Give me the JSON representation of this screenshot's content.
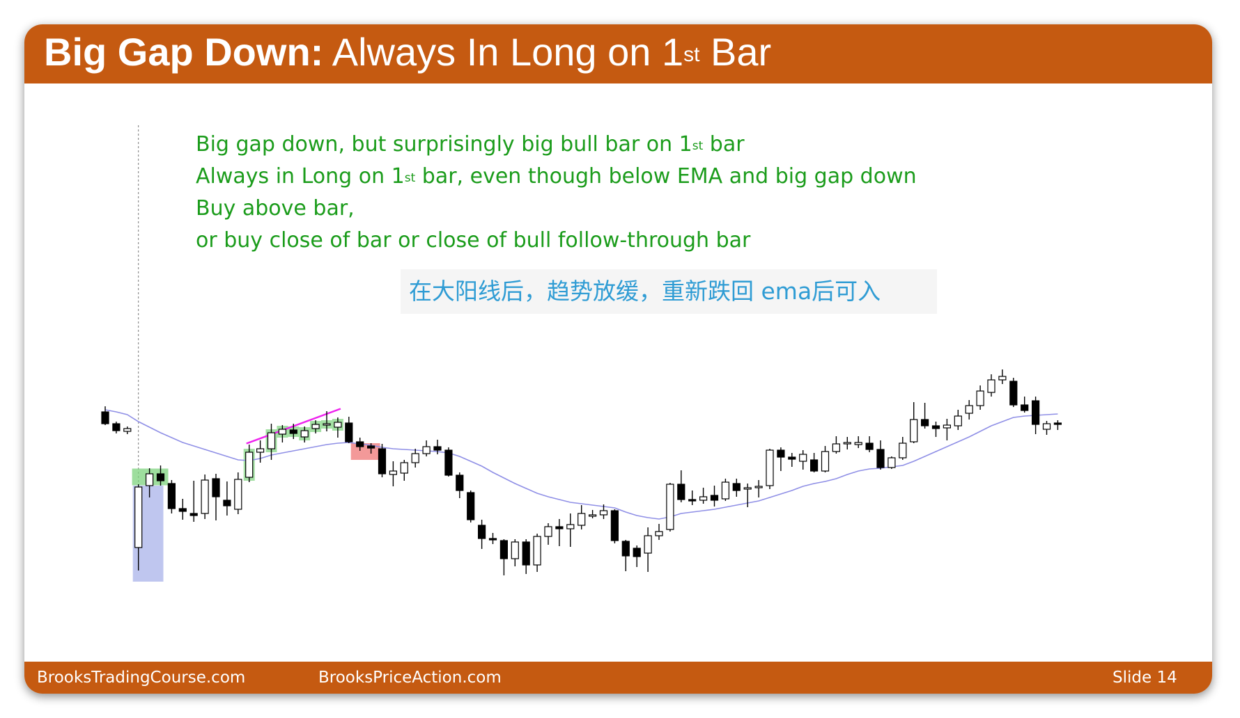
{
  "header": {
    "title_bold": "Big Gap Down:",
    "title_regular_before": "Always In Long on 1",
    "title_sup": "st",
    "title_regular_after": " Bar"
  },
  "annotation": {
    "line1_before": "Big gap down, but surprisingly big bull bar on 1",
    "line1_sup": "st",
    "line1_after": " bar",
    "line2_before": "Always in Long on 1",
    "line2_sup": "st",
    "line2_after": " bar, even though below EMA and big gap down",
    "line3": "Buy above bar,",
    "line4": "or buy close of bar or close of bull follow-through bar"
  },
  "note_cn": "在大阳线后，趋势放缓，重新跌回 ema后可入",
  "footer": {
    "left": "BrooksTradingCourse.com",
    "middle": "BrooksPriceAction.com",
    "slide_label": "Slide  14"
  },
  "colors": {
    "brand": "#c55a11",
    "annotation": "#1b9c1b",
    "note": "#2f9cd4",
    "ema": "#8f8fe6",
    "highlight_blue": "#b4bcec",
    "highlight_green": "#7ed37e",
    "highlight_red": "#f08080",
    "trendline": "#ee22ee"
  },
  "chart_data": {
    "type": "candlestick",
    "price_direction": "up",
    "price_range": [
      0,
      100
    ],
    "candles": [
      {
        "open": 80.0,
        "close": 73.2,
        "high": 83.2,
        "low": 72.4
      },
      {
        "open": 73.2,
        "close": 69.2,
        "high": 74.4,
        "low": 67.6
      },
      {
        "open": 68.8,
        "close": 70.4,
        "high": 71.6,
        "low": 67.2
      },
      {
        "open": 2.0,
        "close": 36.8,
        "high": 38.4,
        "low": -11.2
      },
      {
        "open": 37.6,
        "close": 44.4,
        "high": 47.6,
        "low": 30.8
      },
      {
        "open": 44.4,
        "close": 40.4,
        "high": 49.2,
        "low": 37.6
      },
      {
        "open": 38.8,
        "close": 24.4,
        "high": 40.8,
        "low": 21.6
      },
      {
        "open": 24.4,
        "close": 22.8,
        "high": 30.0,
        "low": 18.0
      },
      {
        "open": 21.6,
        "close": 20.4,
        "high": 40.4,
        "low": 16.8
      },
      {
        "open": 21.6,
        "close": 40.8,
        "high": 44.0,
        "low": 18.4
      },
      {
        "open": 41.6,
        "close": 31.2,
        "high": 44.4,
        "low": 17.6
      },
      {
        "open": 29.2,
        "close": 26.0,
        "high": 40.0,
        "low": 20.4
      },
      {
        "open": 24.0,
        "close": 41.2,
        "high": 45.2,
        "low": 21.2
      },
      {
        "open": 42.4,
        "close": 56.8,
        "high": 61.2,
        "low": 39.6
      },
      {
        "open": 56.8,
        "close": 58.8,
        "high": 63.6,
        "low": 50.8
      },
      {
        "open": 58.8,
        "close": 68.0,
        "high": 73.2,
        "low": 52.4
      },
      {
        "open": 67.2,
        "close": 70.0,
        "high": 72.4,
        "low": 62.4
      },
      {
        "open": 69.6,
        "close": 67.6,
        "high": 73.2,
        "low": 64.4
      },
      {
        "open": 65.6,
        "close": 69.2,
        "high": 71.6,
        "low": 62.4
      },
      {
        "open": 70.4,
        "close": 72.8,
        "high": 75.2,
        "low": 67.6
      },
      {
        "open": 72.4,
        "close": 73.2,
        "high": 80.4,
        "low": 68.8
      },
      {
        "open": 71.2,
        "close": 74.0,
        "high": 76.8,
        "low": 65.2
      },
      {
        "open": 73.6,
        "close": 62.8,
        "high": 77.2,
        "low": 62.0
      },
      {
        "open": 62.8,
        "close": 60.0,
        "high": 65.2,
        "low": 57.6
      },
      {
        "open": 60.4,
        "close": 59.2,
        "high": 62.0,
        "low": 56.0
      },
      {
        "open": 58.8,
        "close": 44.4,
        "high": 61.6,
        "low": 42.4
      },
      {
        "open": 44.0,
        "close": 46.0,
        "high": 51.6,
        "low": 37.2
      },
      {
        "open": 44.8,
        "close": 50.8,
        "high": 52.4,
        "low": 40.4
      },
      {
        "open": 50.8,
        "close": 56.0,
        "high": 58.8,
        "low": 48.0
      },
      {
        "open": 56.0,
        "close": 60.0,
        "high": 63.6,
        "low": 54.4
      },
      {
        "open": 60.0,
        "close": 58.0,
        "high": 64.0,
        "low": 55.6
      },
      {
        "open": 58.0,
        "close": 43.6,
        "high": 59.6,
        "low": 42.8
      },
      {
        "open": 43.6,
        "close": 34.8,
        "high": 45.2,
        "low": 30.4
      },
      {
        "open": 33.6,
        "close": 18.0,
        "high": 34.8,
        "low": 16.4
      },
      {
        "open": 14.8,
        "close": 7.2,
        "high": 18.0,
        "low": 1.2
      },
      {
        "open": 7.2,
        "close": 6.4,
        "high": 10.4,
        "low": 4.0
      },
      {
        "open": 6.0,
        "close": -4.4,
        "high": 6.8,
        "low": -14.0
      },
      {
        "open": -4.4,
        "close": 5.2,
        "high": 6.8,
        "low": -8.8
      },
      {
        "open": 5.2,
        "close": -8.0,
        "high": 6.8,
        "low": -13.2
      },
      {
        "open": -8.0,
        "close": 8.4,
        "high": 10.0,
        "low": -12.0
      },
      {
        "open": 8.4,
        "close": 14.0,
        "high": 16.0,
        "low": 3.6
      },
      {
        "open": 14.0,
        "close": 12.8,
        "high": 18.4,
        "low": 2.8
      },
      {
        "open": 12.8,
        "close": 15.2,
        "high": 21.6,
        "low": 2.4
      },
      {
        "open": 14.8,
        "close": 21.6,
        "high": 26.4,
        "low": 12.4
      },
      {
        "open": 20.0,
        "close": 20.8,
        "high": 23.6,
        "low": 18.8
      },
      {
        "open": 20.8,
        "close": 23.2,
        "high": 26.8,
        "low": 18.4
      },
      {
        "open": 23.2,
        "close": 6.0,
        "high": 24.0,
        "low": 4.4
      },
      {
        "open": 5.6,
        "close": -2.8,
        "high": 6.4,
        "low": -11.6
      },
      {
        "open": 1.6,
        "close": -3.2,
        "high": 3.2,
        "low": -9.2
      },
      {
        "open": -1.2,
        "close": 8.8,
        "high": 13.6,
        "low": -12.0
      },
      {
        "open": 8.8,
        "close": 11.2,
        "high": 15.6,
        "low": 6.4
      },
      {
        "open": 12.4,
        "close": 38.4,
        "high": 39.2,
        "low": 11.2
      },
      {
        "open": 38.4,
        "close": 29.6,
        "high": 46.4,
        "low": 28.0
      },
      {
        "open": 29.6,
        "close": 28.8,
        "high": 34.8,
        "low": 26.4
      },
      {
        "open": 29.2,
        "close": 31.2,
        "high": 36.4,
        "low": 27.2
      },
      {
        "open": 32.0,
        "close": 29.2,
        "high": 37.6,
        "low": 25.6
      },
      {
        "open": 30.0,
        "close": 39.6,
        "high": 41.6,
        "low": 28.8
      },
      {
        "open": 38.8,
        "close": 34.8,
        "high": 41.6,
        "low": 31.2
      },
      {
        "open": 35.6,
        "close": 36.4,
        "high": 38.8,
        "low": 25.2
      },
      {
        "open": 36.4,
        "close": 37.2,
        "high": 40.8,
        "low": 30.8
      },
      {
        "open": 37.6,
        "close": 58.0,
        "high": 58.8,
        "low": 35.6
      },
      {
        "open": 58.0,
        "close": 54.0,
        "high": 59.6,
        "low": 46.0
      },
      {
        "open": 54.0,
        "close": 52.8,
        "high": 56.4,
        "low": 48.4
      },
      {
        "open": 51.6,
        "close": 55.6,
        "high": 58.0,
        "low": 46.8
      },
      {
        "open": 52.4,
        "close": 46.0,
        "high": 56.4,
        "low": 45.2
      },
      {
        "open": 46.0,
        "close": 57.2,
        "high": 60.4,
        "low": 45.2
      },
      {
        "open": 57.2,
        "close": 61.6,
        "high": 66.0,
        "low": 56.0
      },
      {
        "open": 61.6,
        "close": 62.4,
        "high": 65.6,
        "low": 58.4
      },
      {
        "open": 61.2,
        "close": 62.4,
        "high": 66.0,
        "low": 59.2
      },
      {
        "open": 62.0,
        "close": 58.4,
        "high": 66.0,
        "low": 56.8
      },
      {
        "open": 58.4,
        "close": 48.0,
        "high": 63.6,
        "low": 46.8
      },
      {
        "open": 48.0,
        "close": 53.6,
        "high": 54.4,
        "low": 47.2
      },
      {
        "open": 53.6,
        "close": 62.0,
        "high": 65.6,
        "low": 52.4
      },
      {
        "open": 62.8,
        "close": 75.6,
        "high": 85.6,
        "low": 62.0
      },
      {
        "open": 75.6,
        "close": 72.0,
        "high": 85.2,
        "low": 70.4
      },
      {
        "open": 72.0,
        "close": 70.4,
        "high": 74.4,
        "low": 65.6
      },
      {
        "open": 70.8,
        "close": 72.4,
        "high": 76.0,
        "low": 63.6
      },
      {
        "open": 72.0,
        "close": 77.6,
        "high": 81.2,
        "low": 69.6
      },
      {
        "open": 79.2,
        "close": 83.6,
        "high": 86.8,
        "low": 75.6
      },
      {
        "open": 83.6,
        "close": 92.0,
        "high": 95.2,
        "low": 81.2
      },
      {
        "open": 91.2,
        "close": 98.4,
        "high": 101.6,
        "low": 88.8
      },
      {
        "open": 98.4,
        "close": 100.4,
        "high": 104.4,
        "low": 96.0
      },
      {
        "open": 97.6,
        "close": 84.0,
        "high": 99.6,
        "low": 82.8
      },
      {
        "open": 84.0,
        "close": 80.8,
        "high": 88.8,
        "low": 79.6
      },
      {
        "open": 86.4,
        "close": 72.8,
        "high": 88.8,
        "low": 67.2
      },
      {
        "open": 70.0,
        "close": 73.2,
        "high": 74.8,
        "low": 66.8
      },
      {
        "open": 73.6,
        "close": 72.8,
        "high": 75.2,
        "low": 69.6
      }
    ],
    "ema": [
      81.2,
      80.0,
      78.4,
      74.4,
      71.2,
      68.0,
      65.2,
      62.4,
      60.4,
      58.4,
      56.4,
      54.4,
      52.4,
      52.0,
      53.2,
      55.2,
      56.4,
      57.6,
      58.8,
      60.0,
      61.2,
      62.0,
      62.4,
      61.6,
      60.8,
      59.6,
      58.8,
      58.4,
      58.0,
      57.6,
      57.2,
      56.4,
      54.4,
      51.6,
      48.8,
      45.2,
      42.0,
      38.8,
      36.0,
      33.2,
      31.2,
      29.6,
      28.0,
      27.2,
      26.4,
      25.6,
      24.8,
      22.4,
      20.4,
      19.2,
      18.4,
      19.6,
      21.6,
      22.4,
      23.2,
      24.0,
      25.2,
      26.4,
      27.6,
      28.8,
      30.8,
      32.8,
      34.8,
      37.2,
      38.8,
      40.0,
      41.6,
      44.0,
      46.0,
      47.2,
      47.6,
      48.4,
      49.2,
      51.6,
      54.4,
      57.2,
      60.0,
      62.8,
      65.6,
      68.8,
      72.0,
      74.4,
      76.8,
      77.6,
      78.0,
      78.4,
      78.8
    ],
    "highlights": {
      "gap_bar_index": 3,
      "entry_bar_indices": [
        4,
        5
      ],
      "bull_follow_through_indices": [
        13,
        15,
        16,
        17,
        18,
        19,
        20,
        21
      ],
      "pullback_bar_indices": [
        23,
        24
      ]
    }
  }
}
